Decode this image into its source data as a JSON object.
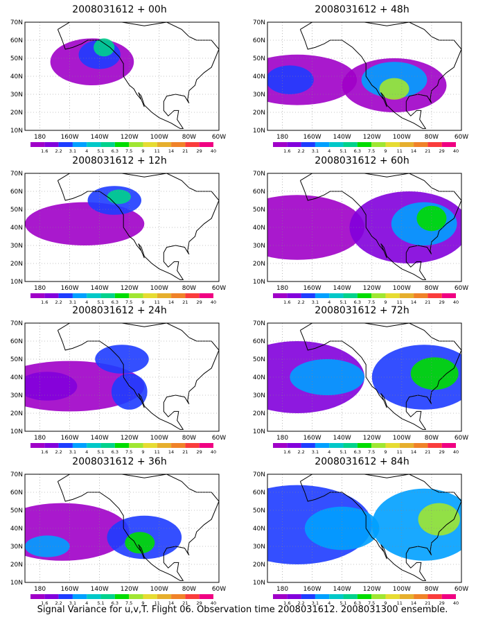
{
  "footer": "Signal Variance for u,v,T. Flight 06. Observation time 2008031612. 2008031300 ensemble.",
  "map": {
    "lon_labels": [
      "180",
      "160W",
      "140W",
      "120W",
      "100W",
      "80W",
      "60W"
    ],
    "lat_labels": [
      "70N",
      "60N",
      "50N",
      "40N",
      "30N",
      "20N",
      "10N"
    ],
    "colorbar_labels": [
      "1.6",
      "2.2",
      "3.1",
      "4",
      "5.1",
      "6.3",
      "7.5",
      "9",
      "11",
      "14",
      "21",
      "29",
      "40"
    ],
    "colorbar_colors": [
      "#a000c8",
      "#8200dc",
      "#1e3cff",
      "#00a0ff",
      "#00c8c8",
      "#00d28c",
      "#00dc00",
      "#a0e632",
      "#e6dc32",
      "#e6af2d",
      "#f08228",
      "#fa3c3c",
      "#f00082"
    ]
  },
  "panels": [
    {
      "title": "2008031612 + 00h"
    },
    {
      "title": "2008031612 + 48h"
    },
    {
      "title": "2008031612 + 12h"
    },
    {
      "title": "2008031612 + 60h"
    },
    {
      "title": "2008031612 + 24h"
    },
    {
      "title": "2008031612 + 72h"
    },
    {
      "title": "2008031612 + 36h"
    },
    {
      "title": "2008031612 + 84h"
    }
  ]
}
